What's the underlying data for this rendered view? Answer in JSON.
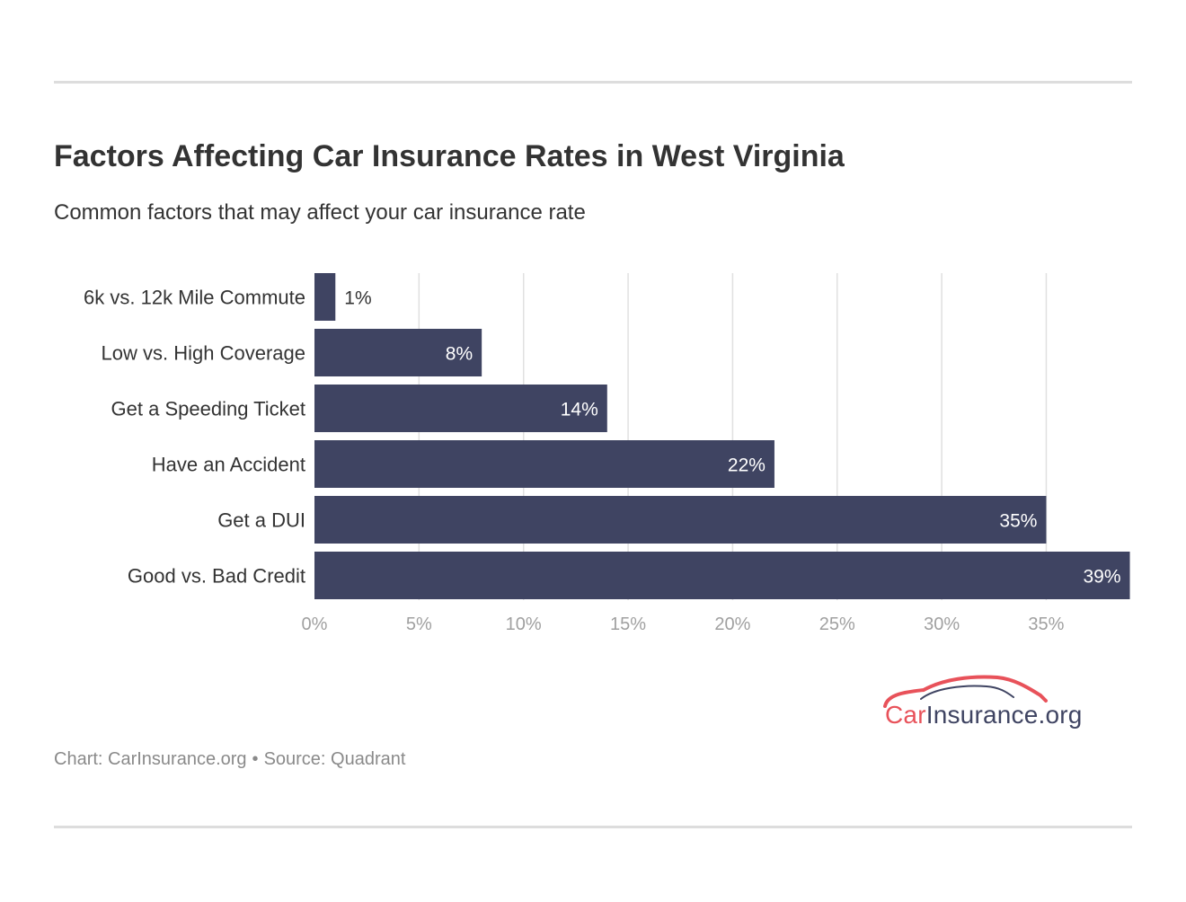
{
  "title": "Factors Affecting Car Insurance Rates in West Virginia",
  "subtitle": "Common factors that may affect your car insurance rate",
  "footer": {
    "chart_credit": "Chart: CarInsurance.org",
    "separator": "•",
    "source": "Source: Quadrant"
  },
  "logo": {
    "brand": "Car",
    "rest": "Insurance.org",
    "brand_color": "#e8525a",
    "rest_color": "#3f4462"
  },
  "chart_data": {
    "type": "bar",
    "orientation": "horizontal",
    "categories": [
      "6k vs. 12k Mile Commute",
      "Low vs. High Coverage",
      "Get a Speeding Ticket",
      "Have an Accident",
      "Get a DUI",
      "Good vs. Bad Credit"
    ],
    "values": [
      1,
      8,
      14,
      22,
      35,
      39
    ],
    "value_labels": [
      "1%",
      "8%",
      "14%",
      "22%",
      "35%",
      "39%"
    ],
    "xlim": [
      0,
      39
    ],
    "xticks": [
      0,
      5,
      10,
      15,
      20,
      25,
      30,
      35
    ],
    "xtick_labels": [
      "0%",
      "5%",
      "10%",
      "15%",
      "20%",
      "25%",
      "30%",
      "35%"
    ],
    "grid": true,
    "bar_color": "#3f4462",
    "grid_color": "#e0e0e0",
    "tick_color": "#a0a0a0"
  }
}
